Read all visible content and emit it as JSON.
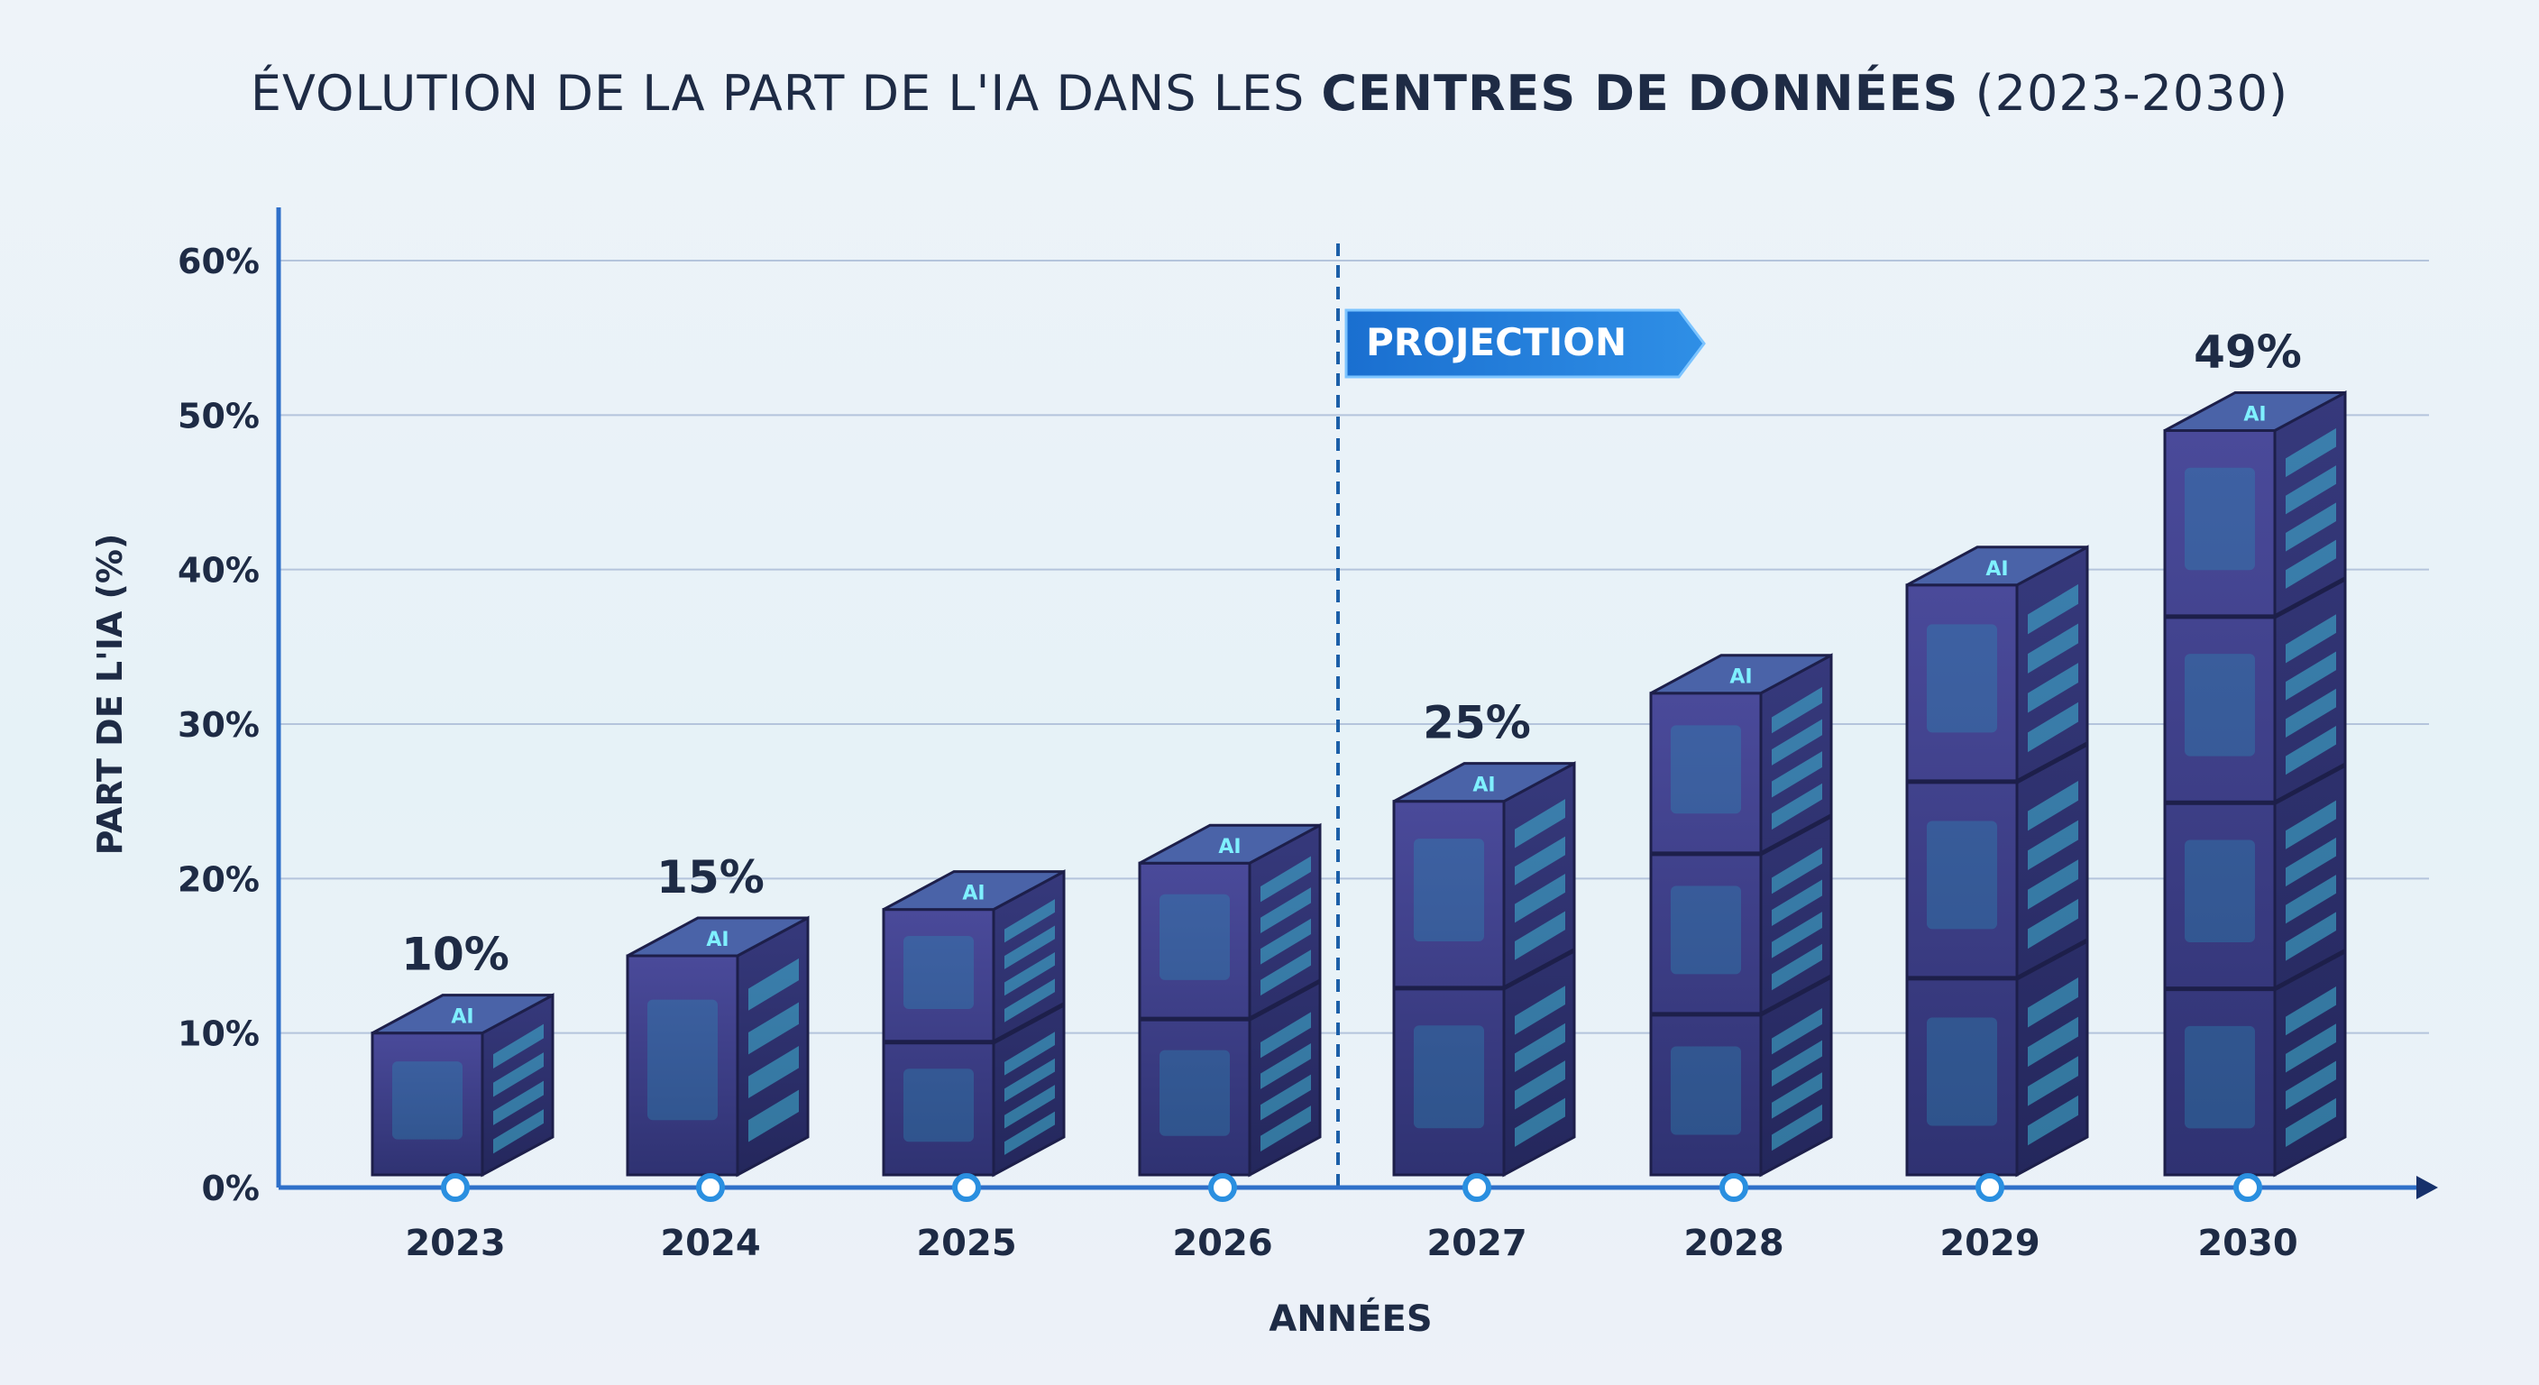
{
  "chart_data": {
    "type": "bar",
    "title_part1": "ÉVOLUTION DE LA PART DE L'IA DANS LES",
    "title_part2": "CENTRES DE DONNÉES",
    "title_part3": "(2023-2030)",
    "xlabel": "ANNÉES",
    "ylabel": "PART DE L'IA (%)",
    "ylim": [
      0,
      60
    ],
    "yticks": [
      "0%",
      "10%",
      "20%",
      "30%",
      "40%",
      "50%",
      "60%"
    ],
    "grid": true,
    "categories": [
      "2023",
      "2024",
      "2025",
      "2026",
      "2027",
      "2028",
      "2029",
      "2030"
    ],
    "values": [
      10,
      15,
      18,
      21,
      25,
      32,
      39,
      49
    ],
    "data_labels": [
      "10%",
      "15%",
      "",
      "",
      "25%",
      "",
      "",
      "49%"
    ],
    "projection_label": "PROJECTION",
    "projection_start_between": [
      "2026",
      "2027"
    ],
    "colors": {
      "bar_front": "#3b3f86",
      "bar_side": "#2b2d6a",
      "bar_top": "#4a63a8",
      "accent": "#1f7fd6",
      "axis": "#2e6fc9",
      "grid": "#b4c4dc",
      "text": "#1e2b45"
    }
  }
}
